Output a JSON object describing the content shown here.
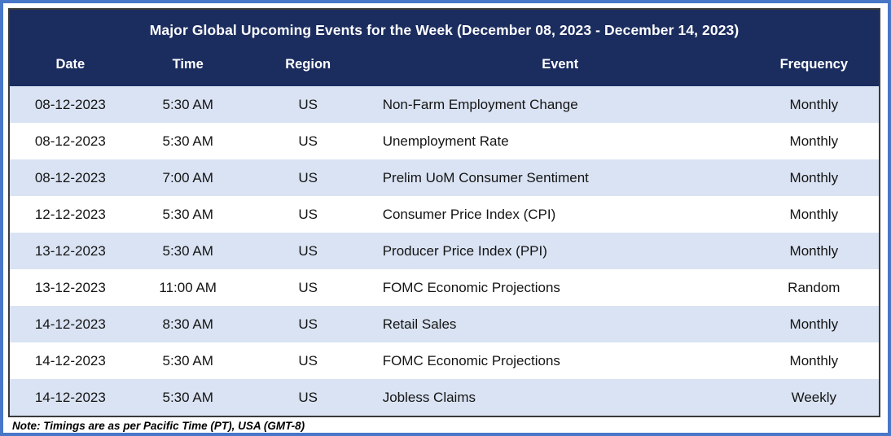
{
  "table": {
    "title": "Major Global Upcoming Events for the Week (December 08, 2023 - December 14, 2023)",
    "columns": [
      "Date",
      "Time",
      "Region",
      "Event",
      "Frequency"
    ],
    "rows": [
      [
        "08-12-2023",
        "5:30 AM",
        "US",
        "Non-Farm Employment Change",
        "Monthly"
      ],
      [
        "08-12-2023",
        "5:30 AM",
        "US",
        "Unemployment Rate",
        "Monthly"
      ],
      [
        "08-12-2023",
        "7:00 AM",
        "US",
        "Prelim UoM Consumer Sentiment",
        "Monthly"
      ],
      [
        "12-12-2023",
        "5:30 AM",
        "US",
        "Consumer Price Index (CPI)",
        "Monthly"
      ],
      [
        "13-12-2023",
        "5:30 AM",
        "US",
        "Producer Price Index (PPI)",
        "Monthly"
      ],
      [
        "13-12-2023",
        "11:00 AM",
        "US",
        "FOMC Economic Projections",
        "Random"
      ],
      [
        "14-12-2023",
        "8:30 AM",
        "US",
        "Retail Sales",
        "Monthly"
      ],
      [
        "14-12-2023",
        "5:30 AM",
        "US",
        "FOMC Economic Projections",
        "Monthly"
      ],
      [
        "14-12-2023",
        "5:30 AM",
        "US",
        "Jobless Claims",
        "Weekly"
      ]
    ],
    "note": "Note: Timings are as per Pacific Time (PT), USA (GMT-8)"
  },
  "colors": {
    "frame_border": "#4877C8",
    "table_border": "#3a3a3a",
    "header_bg": "#1b2c5f",
    "header_text": "#ffffff",
    "row_alt_bg": "#dae3f3",
    "row_plain_bg": "#ffffff",
    "cell_text": "#141414"
  }
}
